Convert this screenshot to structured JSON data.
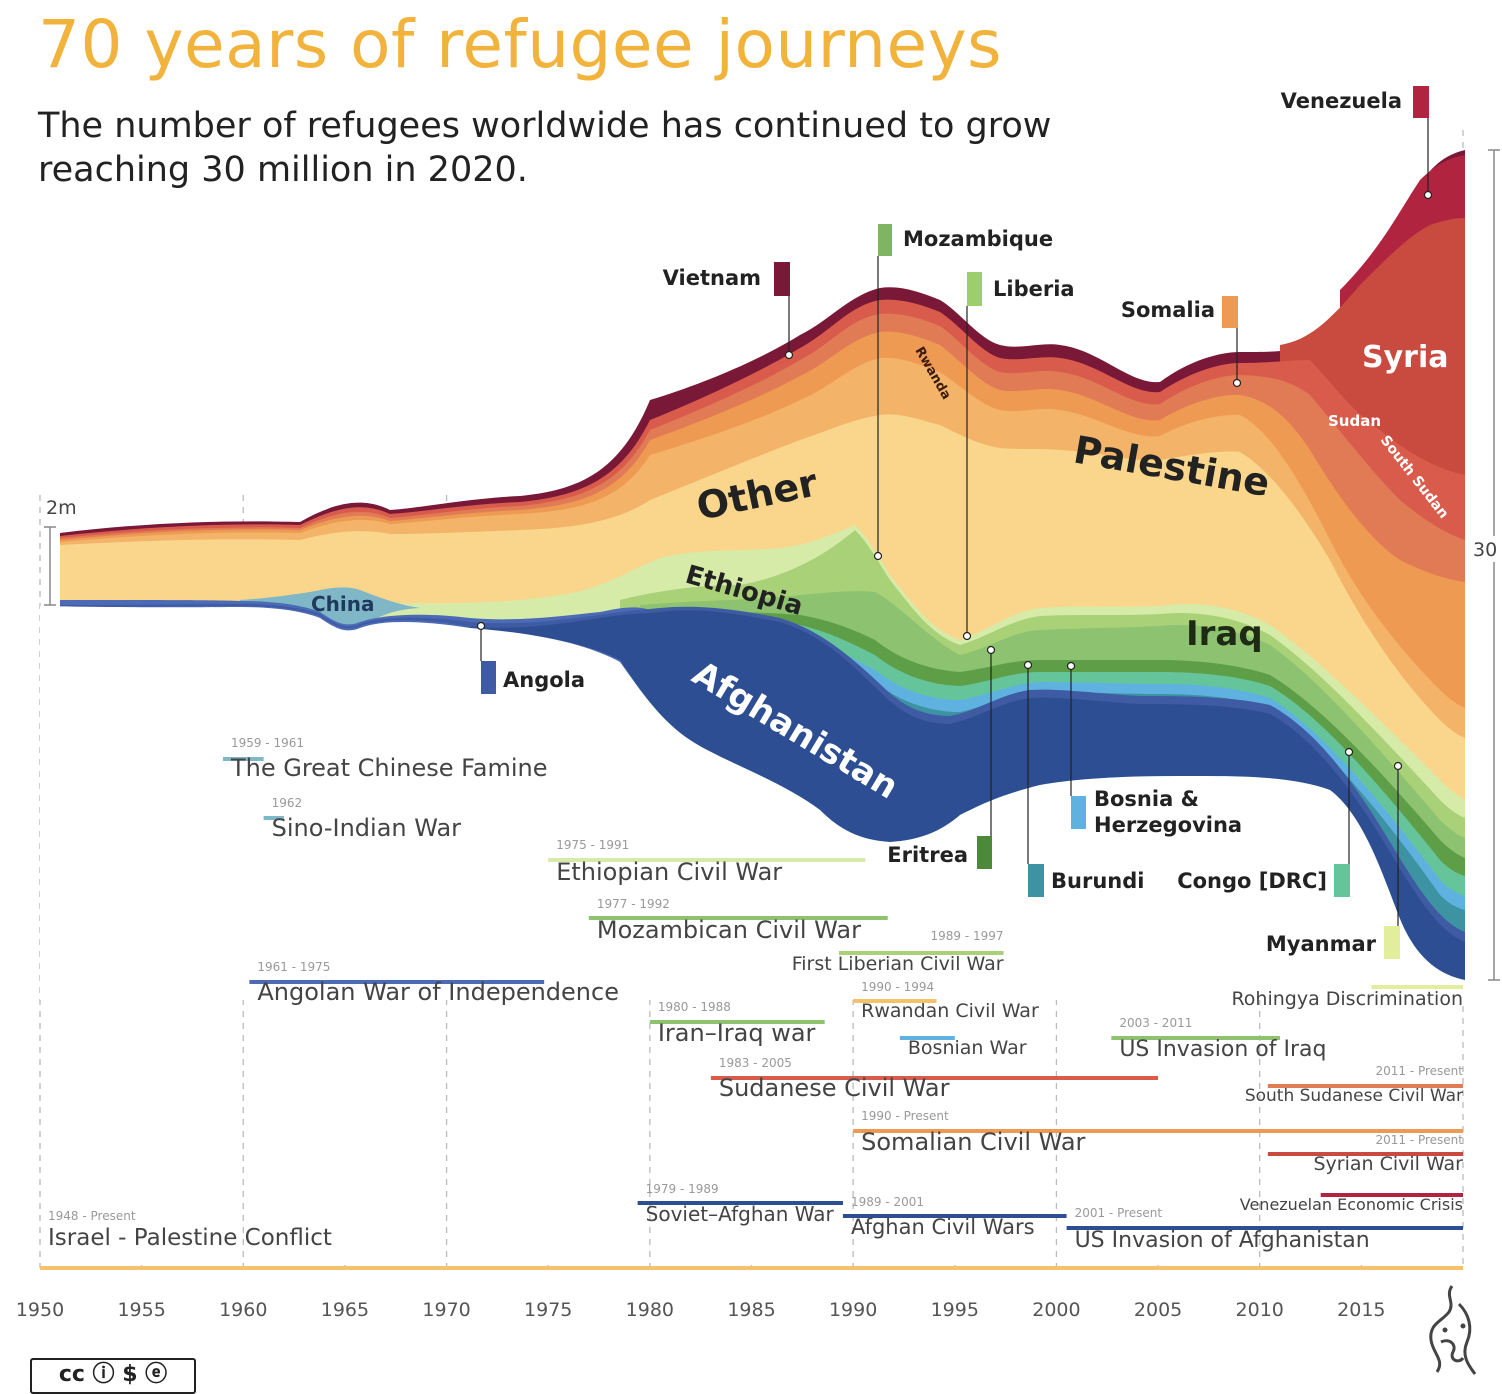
{
  "title": "70 years of refugee journeys",
  "subtitle": "The number of refugees worldwide has continued to grow reaching 30 million in 2020.",
  "license_badge": "cc ⓘ $ ⓔ",
  "colors": {
    "title": "#F2B33D",
    "afghanistan": "#2E4E94",
    "palestine": "#F5C26A",
    "other": "#F3B368",
    "syria": "#C94A3E",
    "venezuela": "#B0243F",
    "vietnam": "#7A1838",
    "iraq": "#8CC270"
  },
  "chart_data": {
    "type": "area",
    "subtype": "streamgraph",
    "x_range": [
      1950,
      2020
    ],
    "x_ticks": [
      "1950",
      "1955",
      "1960",
      "1965",
      "1970",
      "1975",
      "1980",
      "1985",
      "1990",
      "1995",
      "2000",
      "2005",
      "2010",
      "2015"
    ],
    "scale_left_label": "2m",
    "scale_right_label": "30",
    "total_series": {
      "name": "",
      "unit": "million",
      "x": [
        1950,
        1955,
        1960,
        1965,
        1970,
        1975,
        1980,
        1985,
        1990,
        1992,
        1995,
        2000,
        2005,
        2010,
        2015,
        2020
      ],
      "y": [
        2.1,
        2.2,
        2.4,
        3.0,
        3.3,
        4.0,
        9.0,
        13.0,
        17.8,
        18.3,
        16.0,
        15.5,
        14.0,
        15.5,
        20.0,
        30.0
      ]
    },
    "stream_labels": [
      "Other",
      "Ethiopia",
      "Afghanistan",
      "China",
      "Palestine",
      "Iraq",
      "Syria",
      "Sudan",
      "South Sudan",
      "Rwanda"
    ],
    "country_callouts": [
      {
        "name": "Venezuela",
        "year": 2018.5,
        "color": "#B0243F"
      },
      {
        "name": "Mozambique",
        "year": 1991.5,
        "color": "#7DB562"
      },
      {
        "name": "Vietnam",
        "year": 1986.5,
        "color": "#7A1838"
      },
      {
        "name": "Liberia",
        "year": 1995.5,
        "color": "#9CCE6C"
      },
      {
        "name": "Somalia",
        "year": 2009,
        "color": "#EF9A52"
      },
      {
        "name": "Angola",
        "year": 1971.5,
        "color": "#3E5BA3"
      },
      {
        "name": "Eritrea",
        "year": 1996.5,
        "color": "#4C8A3A"
      },
      {
        "name": "Bosnia & Herzegovina",
        "year": 2001,
        "color": "#5FB2E0"
      },
      {
        "name": "Burundi",
        "year": 1998.5,
        "color": "#3E93A3"
      },
      {
        "name": "Congo [DRC]",
        "year": 2014.5,
        "color": "#66C49A"
      },
      {
        "name": "Myanmar",
        "year": 2017,
        "color": "#E3EE9C"
      }
    ],
    "conflicts": [
      {
        "period": "1959 - 1961",
        "name": "The Great Chinese Famine",
        "start": 1959,
        "end": 1961,
        "color": "#7FB7C7"
      },
      {
        "period": "1962",
        "name": "Sino-Indian War",
        "start": 1961,
        "end": 1962,
        "color": "#7FB7C7"
      },
      {
        "period": "1975 - 1991",
        "name": "Ethiopian Civil War",
        "start": 1975,
        "end": 1990.6,
        "color": "#D7EBA9"
      },
      {
        "period": "1977 - 1992",
        "name": "Mozambican Civil War",
        "start": 1977,
        "end": 1991.7,
        "color": "#8CC270"
      },
      {
        "period": "1989 - 1997",
        "name": "First Liberian Civil War",
        "start": 1989.3,
        "end": 1997.4,
        "color": "#A9D178"
      },
      {
        "period": "1961 - 1975",
        "name": "Angolan War of Independence",
        "start": 1960.3,
        "end": 1974.8,
        "color": "#4B6BB6"
      },
      {
        "period": "1990 - 1994",
        "name": "Rwandan Civil War",
        "start": 1990,
        "end": 1994.1,
        "color": "#F5C26A"
      },
      {
        "period": "1980 - 1988",
        "name": "Iran–Iraq war",
        "start": 1980,
        "end": 1988.6,
        "color": "#8CC270"
      },
      {
        "period": "",
        "name": "Bosnian War",
        "start": 1992.3,
        "end": 1995,
        "color": "#5FB2E0"
      },
      {
        "period": "2003 - 2011",
        "name": "US Invasion of Iraq",
        "start": 2002.7,
        "end": 2011,
        "color": "#8CC270"
      },
      {
        "period": "1983 - 2005",
        "name": "Sudanese Civil War",
        "start": 1983,
        "end": 2005,
        "color": "#D95B4C"
      },
      {
        "period": "2011 - Present",
        "name": "South Sudanese Civil War",
        "start": 2010.4,
        "end": 2020,
        "color": "#E07B55"
      },
      {
        "period": "1990 - Present",
        "name": "Somalian Civil War",
        "start": 1990,
        "end": 2020,
        "color": "#EF9A52"
      },
      {
        "period": "2011 - Present",
        "name": "Syrian Civil War",
        "start": 2010.4,
        "end": 2020,
        "color": "#C94A3E"
      },
      {
        "period": "",
        "name": "Rohingya Discrimination",
        "start": 2015.5,
        "end": 2020,
        "color": "#E3EE9C"
      },
      {
        "period": "",
        "name": "Venezuelan Economic Crisis",
        "start": 2013,
        "end": 2020,
        "color": "#B0243F"
      },
      {
        "period": "1979 - 1989",
        "name": "Soviet–Afghan War",
        "start": 1979.4,
        "end": 1989.5,
        "color": "#2E4E94"
      },
      {
        "period": "1989 - 2001",
        "name": "Afghan Civil Wars",
        "start": 1989.5,
        "end": 2000.5,
        "color": "#2E4E94"
      },
      {
        "period": "2001 - Present",
        "name": "US Invasion of Afghanistan",
        "start": 2000.5,
        "end": 2020,
        "color": "#2E4E94"
      },
      {
        "period": "1948 - Present",
        "name": "Israel - Palestine Conflict",
        "start": 1950,
        "end": 2020,
        "color": "#F5C26A"
      }
    ]
  }
}
